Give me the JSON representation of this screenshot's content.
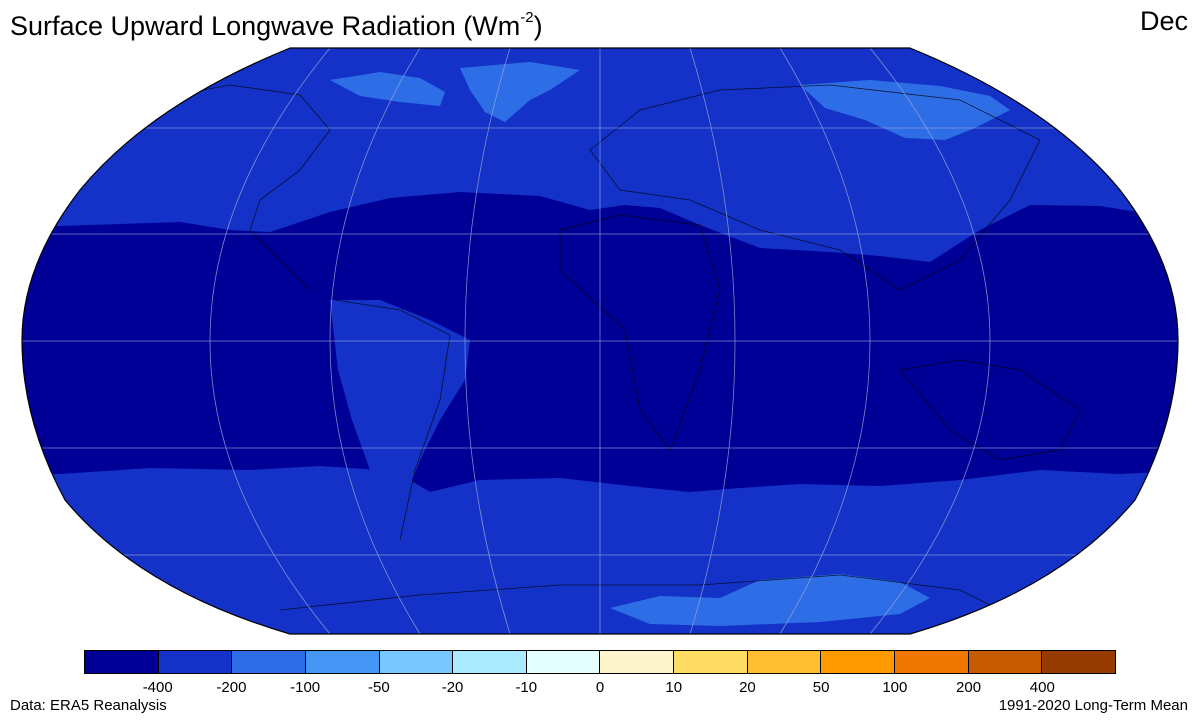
{
  "header": {
    "title_main": "Surface Upward Longwave Radiation (Wm",
    "title_sup": "-2",
    "title_end": ")",
    "month": "Dec"
  },
  "map": {
    "projection": "Robinson",
    "graticule": true,
    "fill_colors": {
      "ocean_tropics": "#000096",
      "mid_latitudes": "#1432C8",
      "polar_cold_regions": "#2D6EE6"
    }
  },
  "colorbar": {
    "colors": [
      "#000096",
      "#1432C8",
      "#2D6EE6",
      "#4696F5",
      "#78C8FF",
      "#AAEBFF",
      "#E6FFFF",
      "#FFF5CC",
      "#FFDC64",
      "#FFBE32",
      "#FF9B00",
      "#F07800",
      "#C85A00",
      "#963C00"
    ],
    "tick_labels": [
      "-400",
      "-200",
      "-100",
      "-50",
      "-20",
      "-10",
      "0",
      "10",
      "20",
      "50",
      "100",
      "200",
      "400"
    ]
  },
  "footer": {
    "source": "Data: ERA5 Reanalysis",
    "period": "1991-2020 Long-Term Mean"
  }
}
